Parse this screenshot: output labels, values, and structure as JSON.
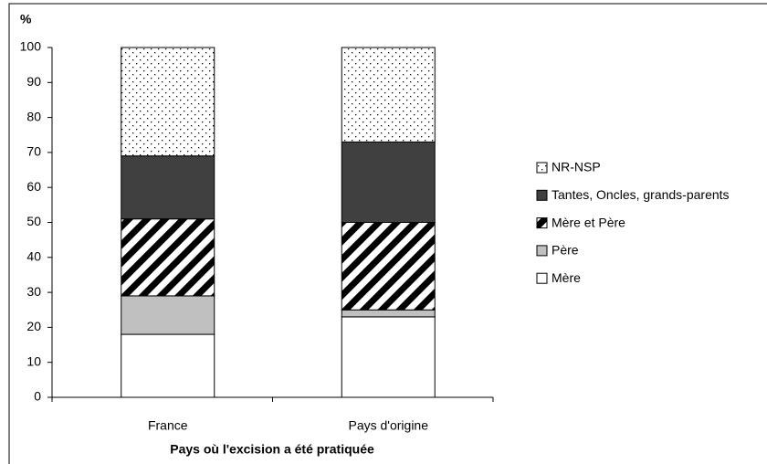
{
  "chart_data": {
    "type": "stacked_bar",
    "y_unit_label": "%",
    "x_label": "Pays où l'excision a été pratiquée",
    "categories": [
      "France",
      "Pays d'origine"
    ],
    "series": [
      {
        "name": "Mère",
        "color": "#ffffff",
        "values": [
          18,
          23
        ]
      },
      {
        "name": "Père",
        "color": "#c0c0c0",
        "values": [
          11,
          2
        ]
      },
      {
        "name": "Mère et Père",
        "color": "#000000",
        "pattern": "diagonal",
        "values": [
          22,
          25
        ]
      },
      {
        "name": "Tantes, Oncles, grands-parents",
        "color": "#404040",
        "values": [
          18,
          23
        ]
      },
      {
        "name": "NR-NSP",
        "color": "#000000",
        "pattern": "dots",
        "values": [
          31,
          27
        ]
      }
    ],
    "ylim": [
      0,
      100
    ],
    "yticks": [
      0,
      10,
      20,
      30,
      40,
      50,
      60,
      70,
      80,
      90,
      100
    ],
    "legend": "right"
  }
}
